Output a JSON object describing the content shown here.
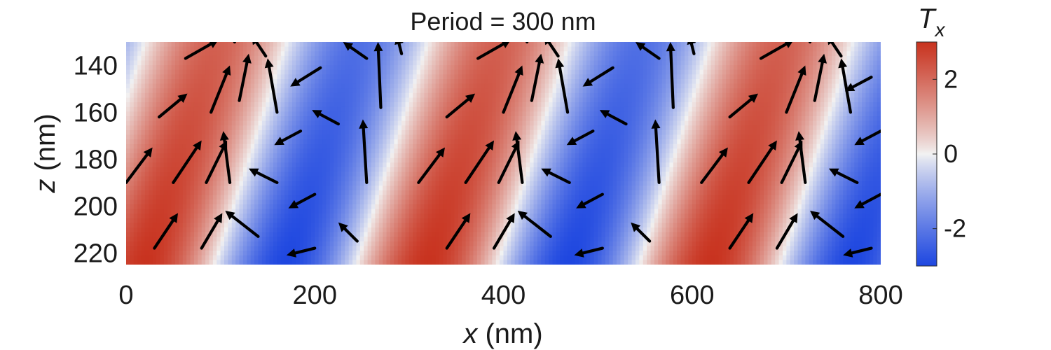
{
  "chart_data": {
    "type": "heatmap",
    "title": "Period = 300 nm",
    "xlabel": {
      "var": "x",
      "unit": " (nm)"
    },
    "ylabel": {
      "var": "z",
      "unit": " (nm)"
    },
    "xlim": [
      0,
      800
    ],
    "ylim": [
      130,
      225
    ],
    "y_reversed": true,
    "x_ticks": [
      0,
      200,
      400,
      600,
      800
    ],
    "y_ticks": [
      140,
      160,
      180,
      200,
      220
    ],
    "field": {
      "period_nm": 300,
      "tilt_dx_per_dz": -0.8,
      "red_center_x_at_z130": 95,
      "amplitude": 3,
      "colormap": {
        "low": "#1d46e0",
        "mid": "#f2f2f2",
        "high": "#c8321e"
      }
    },
    "colorbar": {
      "label_base": "T",
      "label_sub": "x",
      "range": [
        -3,
        3
      ],
      "ticks": [
        -2,
        0,
        2
      ],
      "tick_labels": [
        "-2",
        "0",
        "2"
      ]
    },
    "vector_field": {
      "description_rows_z": [
        135,
        150,
        163,
        180,
        195,
        212
      ],
      "arrows": [
        {
          "x": 63,
          "z": 137,
          "dx": 35,
          "dz": -8
        },
        {
          "x": 115,
          "z": 130,
          "dx": 10,
          "dz": -15
        },
        {
          "x": 148,
          "z": 136,
          "dx": -15,
          "dz": -9
        },
        {
          "x": 206,
          "z": 141,
          "dx": -32,
          "dz": 8
        },
        {
          "x": 255,
          "z": 137,
          "dx": -25,
          "dz": -7
        },
        {
          "x": 292,
          "z": 135,
          "dx": -5,
          "dz": -8
        },
        {
          "x": 373,
          "z": 137,
          "dx": 35,
          "dz": -8
        },
        {
          "x": 425,
          "z": 130,
          "dx": 10,
          "dz": -15
        },
        {
          "x": 458,
          "z": 136,
          "dx": -15,
          "dz": -9
        },
        {
          "x": 516,
          "z": 141,
          "dx": -32,
          "dz": 8
        },
        {
          "x": 565,
          "z": 137,
          "dx": -25,
          "dz": -7
        },
        {
          "x": 602,
          "z": 135,
          "dx": -5,
          "dz": -8
        },
        {
          "x": 673,
          "z": 137,
          "dx": 35,
          "dz": -8
        },
        {
          "x": 725,
          "z": 130,
          "dx": 10,
          "dz": -15
        },
        {
          "x": 758,
          "z": 136,
          "dx": -15,
          "dz": -9
        },
        {
          "x": 790,
          "z": 145,
          "dx": -28,
          "dz": 6
        },
        {
          "x": 35,
          "z": 162,
          "dx": 30,
          "dz": -10
        },
        {
          "x": 90,
          "z": 160,
          "dx": 20,
          "dz": -20
        },
        {
          "x": 120,
          "z": 155,
          "dx": 10,
          "dz": -20
        },
        {
          "x": 160,
          "z": 160,
          "dx": -10,
          "dz": -23
        },
        {
          "x": 270,
          "z": 158,
          "dx": -3,
          "dz": -28
        },
        {
          "x": 340,
          "z": 162,
          "dx": 30,
          "dz": -10
        },
        {
          "x": 400,
          "z": 160,
          "dx": 20,
          "dz": -20
        },
        {
          "x": 430,
          "z": 155,
          "dx": 10,
          "dz": -20
        },
        {
          "x": 468,
          "z": 160,
          "dx": -10,
          "dz": -23
        },
        {
          "x": 580,
          "z": 158,
          "dx": -3,
          "dz": -28
        },
        {
          "x": 640,
          "z": 162,
          "dx": 30,
          "dz": -10
        },
        {
          "x": 700,
          "z": 160,
          "dx": 20,
          "dz": -20
        },
        {
          "x": 730,
          "z": 155,
          "dx": 10,
          "dz": -20
        },
        {
          "x": 768,
          "z": 160,
          "dx": -10,
          "dz": -23
        },
        {
          "x": 185,
          "z": 168,
          "dx": -28,
          "dz": 6
        },
        {
          "x": 225,
          "z": 165,
          "dx": -28,
          "dz": -6
        },
        {
          "x": 495,
          "z": 168,
          "dx": -28,
          "dz": 6
        },
        {
          "x": 530,
          "z": 165,
          "dx": -28,
          "dz": -6
        },
        {
          "x": 800,
          "z": 168,
          "dx": -28,
          "dz": 6
        },
        {
          "x": 0,
          "z": 190,
          "dx": 28,
          "dz": -15
        },
        {
          "x": 50,
          "z": 190,
          "dx": 30,
          "dz": -18
        },
        {
          "x": 85,
          "z": 190,
          "dx": 22,
          "dz": -18
        },
        {
          "x": 110,
          "z": 190,
          "dx": -7,
          "dz": -22
        },
        {
          "x": 255,
          "z": 190,
          "dx": -4,
          "dz": -27
        },
        {
          "x": 310,
          "z": 190,
          "dx": 28,
          "dz": -15
        },
        {
          "x": 360,
          "z": 190,
          "dx": 30,
          "dz": -18
        },
        {
          "x": 395,
          "z": 190,
          "dx": 22,
          "dz": -18
        },
        {
          "x": 420,
          "z": 190,
          "dx": -7,
          "dz": -22
        },
        {
          "x": 565,
          "z": 190,
          "dx": -4,
          "dz": -27
        },
        {
          "x": 610,
          "z": 190,
          "dx": 28,
          "dz": -15
        },
        {
          "x": 660,
          "z": 190,
          "dx": 30,
          "dz": -18
        },
        {
          "x": 695,
          "z": 190,
          "dx": 22,
          "dz": -18
        },
        {
          "x": 720,
          "z": 190,
          "dx": -7,
          "dz": -22
        },
        {
          "x": 160,
          "z": 190,
          "dx": -30,
          "dz": -6
        },
        {
          "x": 200,
          "z": 195,
          "dx": -28,
          "dz": 6
        },
        {
          "x": 470,
          "z": 190,
          "dx": -30,
          "dz": -6
        },
        {
          "x": 505,
          "z": 195,
          "dx": -28,
          "dz": 6
        },
        {
          "x": 775,
          "z": 190,
          "dx": -30,
          "dz": -6
        },
        {
          "x": 800,
          "z": 195,
          "dx": -28,
          "dz": 6
        },
        {
          "x": 30,
          "z": 218,
          "dx": 25,
          "dz": -15
        },
        {
          "x": 80,
          "z": 218,
          "dx": 22,
          "dz": -15
        },
        {
          "x": 140,
          "z": 213,
          "dx": -35,
          "dz": -11
        },
        {
          "x": 200,
          "z": 218,
          "dx": -30,
          "dz": 3
        },
        {
          "x": 245,
          "z": 215,
          "dx": -20,
          "dz": -8
        },
        {
          "x": 340,
          "z": 218,
          "dx": 25,
          "dz": -15
        },
        {
          "x": 390,
          "z": 218,
          "dx": 22,
          "dz": -15
        },
        {
          "x": 450,
          "z": 213,
          "dx": -35,
          "dz": -11
        },
        {
          "x": 505,
          "z": 218,
          "dx": -30,
          "dz": 3
        },
        {
          "x": 555,
          "z": 215,
          "dx": -20,
          "dz": -8
        },
        {
          "x": 640,
          "z": 218,
          "dx": 25,
          "dz": -15
        },
        {
          "x": 690,
          "z": 218,
          "dx": 22,
          "dz": -15
        },
        {
          "x": 760,
          "z": 213,
          "dx": -35,
          "dz": -11
        },
        {
          "x": 790,
          "z": 218,
          "dx": -30,
          "dz": 3
        }
      ]
    }
  }
}
